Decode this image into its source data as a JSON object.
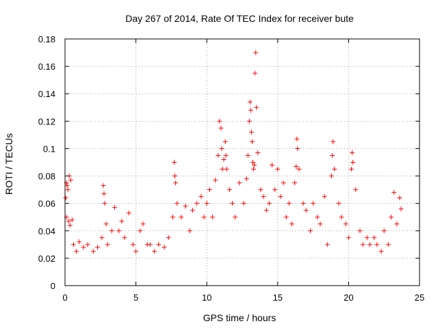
{
  "chart_data": {
    "type": "scatter",
    "title": "Day 267 of 2014, Rate Of TEC Index for receiver bute",
    "xlabel": "GPS time / hours",
    "ylabel": "ROTI / TECUs",
    "xlim": [
      0,
      25
    ],
    "ylim": [
      0,
      0.18
    ],
    "xticks": [
      0,
      5,
      10,
      15,
      20,
      25
    ],
    "xtick_labels": [
      "0",
      "5",
      "10",
      "15",
      "20",
      "25"
    ],
    "yticks": [
      0,
      0.02,
      0.04,
      0.06,
      0.08,
      0.1,
      0.12,
      0.14,
      0.16,
      0.18
    ],
    "ytick_labels": [
      "0",
      "0.02",
      "0.04",
      "0.06",
      "0.08",
      "0.1",
      "0.12",
      "0.14",
      "0.16",
      "0.18"
    ],
    "grid": true,
    "marker": "+",
    "marker_color": "#ff0000",
    "series": [
      {
        "name": "ROTI",
        "x": [
          0.05,
          0.1,
          0.15,
          0.2,
          0.3,
          0.4,
          0.1,
          0.25,
          0.35,
          0.5,
          0.6,
          0.8,
          1.0,
          1.3,
          1.6,
          2.0,
          2.3,
          2.6,
          2.7,
          2.75,
          2.8,
          2.9,
          3.0,
          3.3,
          3.5,
          3.8,
          4.0,
          4.2,
          4.5,
          4.8,
          5.0,
          5.3,
          5.5,
          5.8,
          6.0,
          6.3,
          6.6,
          7.0,
          7.3,
          7.6,
          7.7,
          7.75,
          7.8,
          7.9,
          8.2,
          8.5,
          8.8,
          9.0,
          9.3,
          9.6,
          9.8,
          10.0,
          10.2,
          10.4,
          10.6,
          10.8,
          10.9,
          11.0,
          11.05,
          11.1,
          11.2,
          11.3,
          11.35,
          11.4,
          11.6,
          11.8,
          12.0,
          12.3,
          12.6,
          12.8,
          12.9,
          13.0,
          13.05,
          13.1,
          13.15,
          13.2,
          13.25,
          13.3,
          13.35,
          13.4,
          13.45,
          13.5,
          13.6,
          13.8,
          14.0,
          14.2,
          14.4,
          14.6,
          14.8,
          15.0,
          15.2,
          15.4,
          15.6,
          15.8,
          16.0,
          16.2,
          16.3,
          16.35,
          16.4,
          16.5,
          16.8,
          17.0,
          17.3,
          17.5,
          17.8,
          18.0,
          18.3,
          18.5,
          18.8,
          18.85,
          18.9,
          19.0,
          19.3,
          19.5,
          19.8,
          20.0,
          20.2,
          20.25,
          20.3,
          20.5,
          20.8,
          21.0,
          21.3,
          21.5,
          21.8,
          22.0,
          22.3,
          22.5,
          22.8,
          23.0,
          23.2,
          23.4,
          23.6,
          23.7
        ],
        "y": [
          0.064,
          0.075,
          0.073,
          0.07,
          0.08,
          0.077,
          0.05,
          0.047,
          0.044,
          0.048,
          0.03,
          0.025,
          0.032,
          0.028,
          0.03,
          0.025,
          0.028,
          0.035,
          0.073,
          0.067,
          0.06,
          0.045,
          0.03,
          0.04,
          0.057,
          0.04,
          0.047,
          0.035,
          0.053,
          0.03,
          0.025,
          0.04,
          0.045,
          0.03,
          0.03,
          0.025,
          0.03,
          0.028,
          0.035,
          0.05,
          0.09,
          0.08,
          0.075,
          0.06,
          0.05,
          0.058,
          0.04,
          0.055,
          0.06,
          0.065,
          0.05,
          0.06,
          0.07,
          0.05,
          0.077,
          0.095,
          0.12,
          0.115,
          0.1,
          0.085,
          0.092,
          0.105,
          0.095,
          0.085,
          0.07,
          0.06,
          0.05,
          0.075,
          0.06,
          0.078,
          0.095,
          0.12,
          0.134,
          0.128,
          0.112,
          0.105,
          0.09,
          0.085,
          0.088,
          0.155,
          0.17,
          0.13,
          0.097,
          0.07,
          0.065,
          0.055,
          0.06,
          0.088,
          0.07,
          0.085,
          0.065,
          0.075,
          0.05,
          0.06,
          0.045,
          0.075,
          0.087,
          0.107,
          0.1,
          0.085,
          0.06,
          0.055,
          0.04,
          0.06,
          0.05,
          0.045,
          0.065,
          0.03,
          0.08,
          0.095,
          0.105,
          0.085,
          0.06,
          0.05,
          0.045,
          0.035,
          0.085,
          0.097,
          0.09,
          0.07,
          0.04,
          0.03,
          0.035,
          0.03,
          0.035,
          0.03,
          0.025,
          0.04,
          0.03,
          0.05,
          0.068,
          0.045,
          0.064,
          0.056
        ]
      }
    ]
  }
}
